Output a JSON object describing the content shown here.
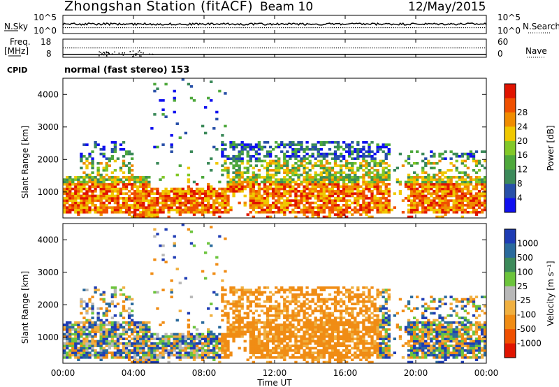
{
  "header": {
    "station": "Zhongshan Station (fitACF)",
    "beam": "Beam 10",
    "date": "12/May/2015"
  },
  "top_panels": {
    "nsky_label": "N.Sky",
    "nsky_ticks": [
      "10^5",
      "10^0"
    ],
    "nsearch_label": "N.Search",
    "nsearch_ticks": [
      "10^5",
      "10^0"
    ],
    "freq_label_1": "Freq.",
    "freq_label_2": "[MHz]",
    "freq_ticks": [
      "18",
      "8"
    ],
    "nave_label": "Nave",
    "nave_ticks": [
      "60",
      "0"
    ],
    "cpid_label": "CPID",
    "cpid_text": "normal (fast stereo) 153"
  },
  "chart_data": [
    {
      "type": "heatmap",
      "name": "power",
      "ylabel": "Slant Range [km]",
      "yticks": [
        "1000",
        "2000",
        "3000",
        "4000"
      ],
      "ylim": [
        200,
        4500
      ],
      "xlim_hours": [
        0,
        24
      ],
      "colorbar_label": "Power [dB]",
      "colorbar_ticks": [
        "4",
        "8",
        "12",
        "16",
        "20",
        "24",
        "28"
      ],
      "colors": [
        "#1010f0",
        "#2850a8",
        "#3c8a5a",
        "#4ea83c",
        "#82c828",
        "#f0c800",
        "#f08c00",
        "#f05000",
        "#e01400"
      ]
    },
    {
      "type": "heatmap",
      "name": "velocity",
      "ylabel": "Slant Range [km]",
      "yticks": [
        "1000",
        "2000",
        "3000",
        "4000"
      ],
      "ylim": [
        200,
        4500
      ],
      "xlim_hours": [
        0,
        24
      ],
      "colorbar_label": "Velocity [m s⁻¹]",
      "colorbar_ticks": [
        "1000",
        "500",
        "100",
        "25",
        "-25",
        "-100",
        "-500",
        "-1000"
      ],
      "colors": [
        "#1e3cb4",
        "#2a6a9c",
        "#3c8a5a",
        "#6cc43c",
        "#b8b8b8",
        "#f0b040",
        "#f08c14",
        "#f05000",
        "#e01400"
      ]
    }
  ],
  "xaxis": {
    "label": "Time UT",
    "ticks": [
      "00:00",
      "04:00",
      "08:00",
      "12:00",
      "16:00",
      "20:00",
      "00:00"
    ]
  }
}
